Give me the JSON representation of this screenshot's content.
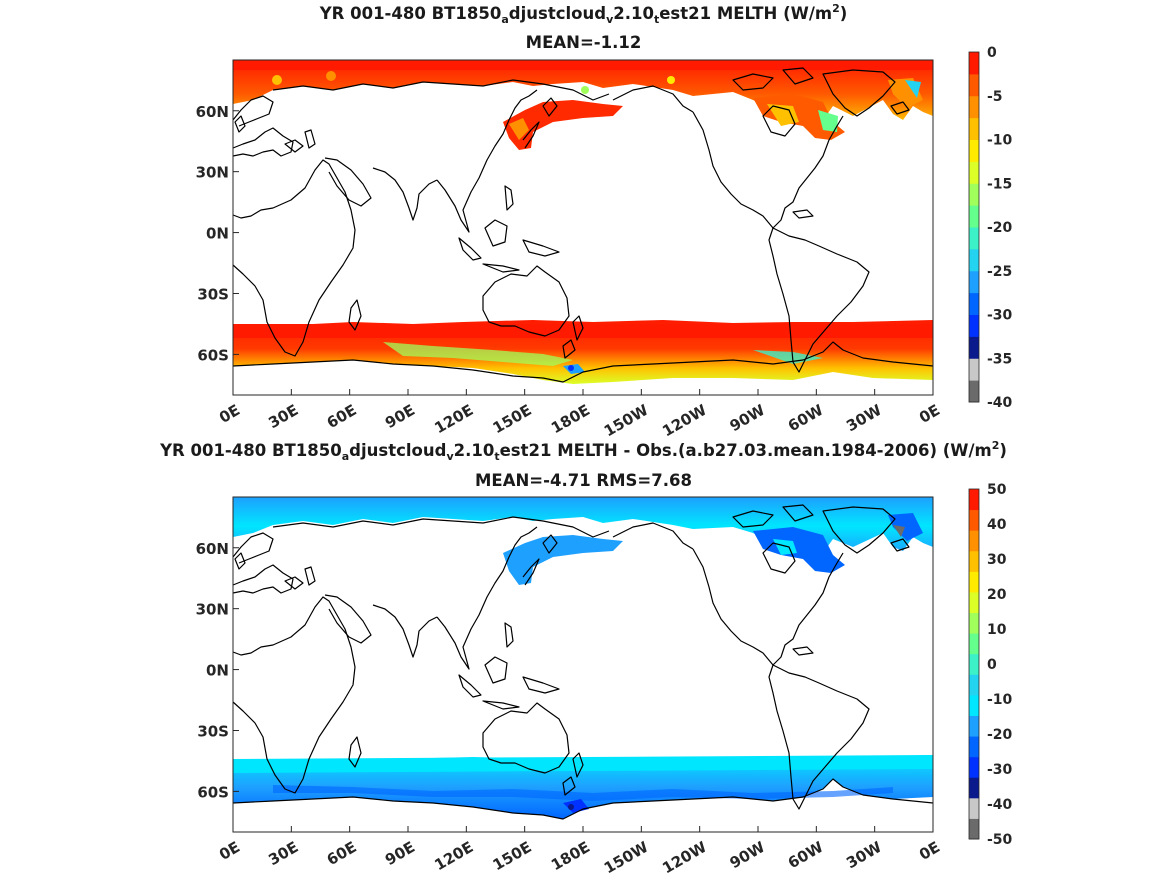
{
  "panels": [
    {
      "title_parts": [
        "YR 001-480 BT1850",
        "a",
        "djustcloud",
        "v",
        "2.10",
        "t",
        "est21  MELTH (W/m",
        "2",
        ")"
      ],
      "subtitle": "MEAN=-1.12",
      "colorbar_ticks": [
        "0",
        "-5",
        "-10",
        "-15",
        "-20",
        "-25",
        "-30",
        "-35",
        "-40"
      ],
      "colorbar_range": [
        -40,
        0
      ],
      "colors": [
        "#6b6b6b",
        "#c8c8c8",
        "#0a1a8c",
        "#0032ff",
        "#0066ff",
        "#1ea0ff",
        "#23d3f0",
        "#3cf0c8",
        "#64ff8c",
        "#a0ff5a",
        "#dcff28",
        "#ffeb00",
        "#ffc000",
        "#ff9100",
        "#ff5a00",
        "#ff1a00"
      ]
    },
    {
      "title_parts": [
        "YR 001-480 BT1850",
        "a",
        "djustcloud",
        "v",
        "2.10",
        "t",
        "est21 MELTH - Obs.(a.b27.03.mean.1984-2006) (W/m",
        "2",
        ")"
      ],
      "subtitle": "MEAN=-4.71 RMS=7.68",
      "colorbar_ticks": [
        "50",
        "40",
        "30",
        "20",
        "10",
        "0",
        "-10",
        "-20",
        "-30",
        "-40",
        "-50"
      ],
      "colorbar_range": [
        -50,
        50
      ],
      "colors": [
        "#6b6b6b",
        "#c8c8c8",
        "#0a1a8c",
        "#0032ff",
        "#0066ff",
        "#1ea0ff",
        "#00e6ff",
        "#23d3f0",
        "#3cf0c8",
        "#64ff8c",
        "#a0ff5a",
        "#dcff28",
        "#ffeb00",
        "#ffc000",
        "#ff9100",
        "#ff5a00",
        "#ff1a00"
      ]
    }
  ],
  "lat_labels": [
    "60N",
    "30N",
    "0N",
    "30S",
    "60S"
  ],
  "lon_labels": [
    "0E",
    "30E",
    "60E",
    "90E",
    "120E",
    "150E",
    "180E",
    "150W",
    "120W",
    "90W",
    "60W",
    "30W",
    "0E"
  ]
}
